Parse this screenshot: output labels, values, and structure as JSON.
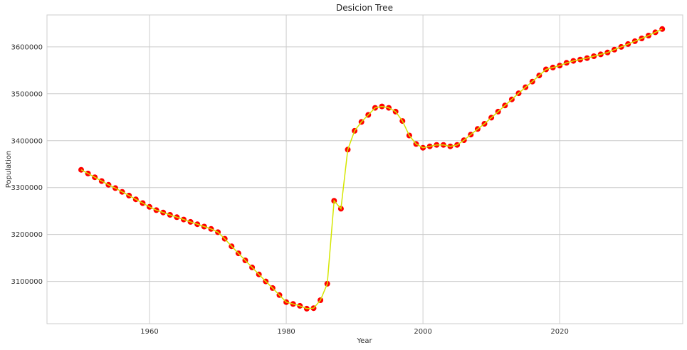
{
  "chart_data": {
    "type": "line",
    "title": "Desicion Tree",
    "xlabel": "Year",
    "ylabel": "Population",
    "xlim": [
      1945,
      2038
    ],
    "ylim": [
      3010000,
      3668000
    ],
    "x_ticks": [
      1960,
      1980,
      2000,
      2020
    ],
    "y_ticks": [
      3100000,
      3200000,
      3300000,
      3400000,
      3500000,
      3600000
    ],
    "grid": true,
    "legend": "none",
    "colors": {
      "line": "#d4e600",
      "marker": "#ff0000",
      "grid": "#cccccc",
      "frame": "#cccccc"
    },
    "series": [
      {
        "x": [
          1950,
          1951,
          1952,
          1953,
          1954,
          1955,
          1956,
          1957,
          1958,
          1959,
          1960,
          1961,
          1962,
          1963,
          1964,
          1965,
          1966,
          1967,
          1968,
          1969,
          1970,
          1971,
          1972,
          1973,
          1974,
          1975,
          1976,
          1977,
          1978,
          1979,
          1980,
          1981,
          1982,
          1983,
          1984,
          1985,
          1986,
          1987,
          1988,
          1989,
          1990,
          1991,
          1992,
          1993,
          1994,
          1995,
          1996,
          1997,
          1998,
          1999,
          2000,
          2001,
          2002,
          2003,
          2004,
          2005,
          2006,
          2007,
          2008,
          2009,
          2010,
          2011,
          2012,
          2013,
          2014,
          2015,
          2016,
          2017,
          2018,
          2019,
          2020,
          2021,
          2022,
          2023,
          2024,
          2025,
          2026,
          2027,
          2028,
          2029,
          2030,
          2031,
          2032,
          2033,
          2034,
          2035
        ],
        "values": [
          3338000,
          3330000,
          3322000,
          3314000,
          3306000,
          3299000,
          3291000,
          3283000,
          3275000,
          3267000,
          3259000,
          3252000,
          3247000,
          3242000,
          3237000,
          3232000,
          3227000,
          3222000,
          3217000,
          3212000,
          3205000,
          3191000,
          3175000,
          3160000,
          3145000,
          3130000,
          3115000,
          3100000,
          3086000,
          3071000,
          3056000,
          3052000,
          3048000,
          3042000,
          3043000,
          3060000,
          3095000,
          3272000,
          3255000,
          3381000,
          3421000,
          3440000,
          3455000,
          3470000,
          3473000,
          3470000,
          3462000,
          3442000,
          3411000,
          3393000,
          3385000,
          3388000,
          3391000,
          3391000,
          3388000,
          3391000,
          3401000,
          3413000,
          3425000,
          3436000,
          3449000,
          3462000,
          3475000,
          3488000,
          3501000,
          3514000,
          3526000,
          3539000,
          3552000,
          3556000,
          3560000,
          3566000,
          3570000,
          3573000,
          3576000,
          3580000,
          3584000,
          3588000,
          3594000,
          3600000,
          3606000,
          3612000,
          3618000,
          3624000,
          3631000,
          3638000
        ]
      }
    ]
  }
}
